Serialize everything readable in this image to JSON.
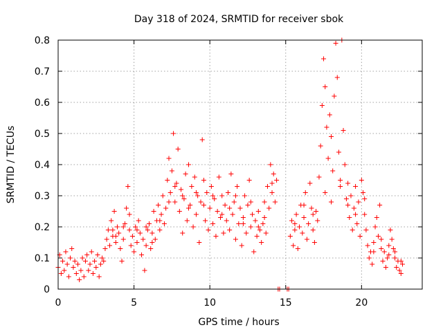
{
  "chart_data": {
    "type": "scatter",
    "title": "Day 318 of 2024, SRMTID for receiver sbok",
    "xlabel": "GPS time / hours",
    "ylabel": "SRMTID / TECUs",
    "xlim": [
      0,
      24
    ],
    "ylim": [
      0,
      0.8
    ],
    "xticks": [
      0,
      5,
      10,
      15,
      20
    ],
    "xtick_labels": [
      "0",
      "5",
      "10",
      "15",
      "20"
    ],
    "yticks": [
      0,
      0.1,
      0.2,
      0.3,
      0.4,
      0.5,
      0.6,
      0.7,
      0.8
    ],
    "ytick_labels": [
      "0",
      "0.1",
      "0.2",
      "0.3",
      "0.4",
      "0.5",
      "0.6",
      "0.7",
      "0.8"
    ],
    "grid": true,
    "marker": "+",
    "color": "#ff0000",
    "series": [
      {
        "name": "SRMTID",
        "points": [
          [
            0.0,
            0.07
          ],
          [
            0.1,
            0.11
          ],
          [
            0.2,
            0.05
          ],
          [
            0.3,
            0.09
          ],
          [
            0.4,
            0.06
          ],
          [
            0.5,
            0.12
          ],
          [
            0.6,
            0.08
          ],
          [
            0.7,
            0.04
          ],
          [
            0.8,
            0.1
          ],
          [
            0.9,
            0.13
          ],
          [
            1.0,
            0.07
          ],
          [
            1.1,
            0.09
          ],
          [
            1.2,
            0.05
          ],
          [
            1.3,
            0.08
          ],
          [
            1.4,
            0.03
          ],
          [
            1.5,
            0.06
          ],
          [
            1.6,
            0.1
          ],
          [
            1.7,
            0.04
          ],
          [
            1.8,
            0.09
          ],
          [
            1.9,
            0.11
          ],
          [
            2.0,
            0.06
          ],
          [
            2.1,
            0.08
          ],
          [
            2.2,
            0.12
          ],
          [
            2.3,
            0.05
          ],
          [
            2.4,
            0.09
          ],
          [
            2.5,
            0.07
          ],
          [
            2.6,
            0.11
          ],
          [
            2.7,
            0.04
          ],
          [
            2.8,
            0.08
          ],
          [
            2.9,
            0.1
          ],
          [
            3.0,
            0.09
          ],
          [
            3.1,
            0.13
          ],
          [
            3.2,
            0.16
          ],
          [
            3.3,
            0.19
          ],
          [
            3.4,
            0.14
          ],
          [
            3.5,
            0.22
          ],
          [
            3.6,
            0.17
          ],
          [
            3.7,
            0.25
          ],
          [
            3.8,
            0.15
          ],
          [
            3.9,
            0.2
          ],
          [
            4.0,
            0.18
          ],
          [
            4.1,
            0.13
          ],
          [
            4.2,
            0.09
          ],
          [
            4.3,
            0.16
          ],
          [
            4.4,
            0.21
          ],
          [
            4.5,
            0.26
          ],
          [
            4.6,
            0.33
          ],
          [
            4.7,
            0.19
          ],
          [
            4.8,
            0.14
          ],
          [
            4.9,
            0.17
          ],
          [
            5.0,
            0.12
          ],
          [
            5.1,
            0.2
          ],
          [
            5.2,
            0.15
          ],
          [
            5.3,
            0.22
          ],
          [
            5.4,
            0.18
          ],
          [
            5.5,
            0.11
          ],
          [
            5.6,
            0.16
          ],
          [
            5.7,
            0.06
          ],
          [
            5.8,
            0.14
          ],
          [
            5.9,
            0.19
          ],
          [
            6.0,
            0.21
          ],
          [
            6.1,
            0.13
          ],
          [
            6.2,
            0.18
          ],
          [
            6.3,
            0.25
          ],
          [
            6.4,
            0.16
          ],
          [
            6.5,
            0.22
          ],
          [
            6.6,
            0.27
          ],
          [
            6.7,
            0.19
          ],
          [
            6.8,
            0.24
          ],
          [
            6.9,
            0.3
          ],
          [
            7.0,
            0.21
          ],
          [
            7.1,
            0.26
          ],
          [
            7.2,
            0.35
          ],
          [
            7.3,
            0.42
          ],
          [
            7.4,
            0.31
          ],
          [
            7.5,
            0.38
          ],
          [
            7.6,
            0.5
          ],
          [
            7.7,
            0.28
          ],
          [
            7.8,
            0.34
          ],
          [
            7.9,
            0.45
          ],
          [
            8.0,
            0.25
          ],
          [
            8.1,
            0.32
          ],
          [
            8.2,
            0.18
          ],
          [
            8.3,
            0.29
          ],
          [
            8.4,
            0.37
          ],
          [
            8.5,
            0.22
          ],
          [
            8.6,
            0.4
          ],
          [
            8.7,
            0.27
          ],
          [
            8.8,
            0.33
          ],
          [
            8.9,
            0.2
          ],
          [
            9.0,
            0.36
          ],
          [
            9.1,
            0.24
          ],
          [
            9.2,
            0.3
          ],
          [
            9.3,
            0.15
          ],
          [
            9.4,
            0.28
          ],
          [
            9.5,
            0.48
          ],
          [
            9.6,
            0.35
          ],
          [
            9.7,
            0.22
          ],
          [
            9.8,
            0.31
          ],
          [
            9.9,
            0.19
          ],
          [
            10.0,
            0.26
          ],
          [
            10.1,
            0.33
          ],
          [
            10.2,
            0.21
          ],
          [
            10.3,
            0.29
          ],
          [
            10.4,
            0.17
          ],
          [
            10.5,
            0.25
          ],
          [
            10.6,
            0.36
          ],
          [
            10.7,
            0.23
          ],
          [
            10.8,
            0.3
          ],
          [
            10.9,
            0.18
          ],
          [
            11.0,
            0.27
          ],
          [
            11.1,
            0.22
          ],
          [
            11.2,
            0.31
          ],
          [
            11.3,
            0.19
          ],
          [
            11.4,
            0.37
          ],
          [
            11.5,
            0.24
          ],
          [
            11.6,
            0.28
          ],
          [
            11.7,
            0.16
          ],
          [
            11.8,
            0.33
          ],
          [
            11.9,
            0.21
          ],
          [
            12.0,
            0.26
          ],
          [
            12.1,
            0.14
          ],
          [
            12.2,
            0.23
          ],
          [
            12.3,
            0.3
          ],
          [
            12.4,
            0.18
          ],
          [
            12.5,
            0.27
          ],
          [
            12.6,
            0.35
          ],
          [
            12.7,
            0.2
          ],
          [
            12.8,
            0.24
          ],
          [
            12.9,
            0.12
          ],
          [
            13.0,
            0.22
          ],
          [
            13.1,
            0.17
          ],
          [
            13.2,
            0.25
          ],
          [
            13.3,
            0.19
          ],
          [
            13.4,
            0.15
          ],
          [
            13.5,
            0.21
          ],
          [
            13.6,
            0.28
          ],
          [
            13.7,
            0.18
          ],
          [
            13.8,
            0.33
          ],
          [
            13.9,
            0.26
          ],
          [
            14.0,
            0.4
          ],
          [
            14.1,
            0.31
          ],
          [
            14.2,
            0.37
          ],
          [
            14.3,
            0.28
          ],
          [
            14.4,
            0.35
          ],
          [
            14.5,
            0.0
          ],
          [
            14.6,
            0.0
          ],
          [
            15.1,
            0.0
          ],
          [
            15.2,
            0.0
          ],
          [
            15.3,
            0.17
          ],
          [
            15.4,
            0.22
          ],
          [
            15.5,
            0.14
          ],
          [
            15.6,
            0.19
          ],
          [
            15.7,
            0.24
          ],
          [
            15.8,
            0.13
          ],
          [
            15.9,
            0.2
          ],
          [
            16.0,
            0.27
          ],
          [
            16.1,
            0.18
          ],
          [
            16.2,
            0.23
          ],
          [
            16.3,
            0.31
          ],
          [
            16.4,
            0.16
          ],
          [
            16.5,
            0.21
          ],
          [
            16.6,
            0.34
          ],
          [
            16.7,
            0.26
          ],
          [
            16.8,
            0.19
          ],
          [
            16.9,
            0.15
          ],
          [
            17.0,
            0.25
          ],
          [
            17.1,
            0.22
          ],
          [
            17.2,
            0.36
          ],
          [
            17.3,
            0.46
          ],
          [
            17.4,
            0.59
          ],
          [
            17.5,
            0.74
          ],
          [
            17.6,
            0.65
          ],
          [
            17.7,
            0.52
          ],
          [
            17.8,
            0.42
          ],
          [
            17.9,
            0.56
          ],
          [
            18.0,
            0.49
          ],
          [
            18.1,
            0.38
          ],
          [
            18.2,
            0.62
          ],
          [
            18.3,
            0.79
          ],
          [
            18.4,
            0.68
          ],
          [
            18.5,
            0.44
          ],
          [
            18.6,
            0.35
          ],
          [
            18.7,
            0.8
          ],
          [
            18.8,
            0.51
          ],
          [
            18.9,
            0.4
          ],
          [
            19.0,
            0.29
          ],
          [
            19.1,
            0.34
          ],
          [
            19.2,
            0.23
          ],
          [
            19.3,
            0.3
          ],
          [
            19.4,
            0.19
          ],
          [
            19.5,
            0.26
          ],
          [
            19.6,
            0.33
          ],
          [
            19.7,
            0.21
          ],
          [
            19.8,
            0.28
          ],
          [
            19.9,
            0.17
          ],
          [
            20.0,
            0.35
          ],
          [
            20.1,
            0.31
          ],
          [
            20.2,
            0.24
          ],
          [
            20.3,
            0.19
          ],
          [
            20.4,
            0.14
          ],
          [
            20.5,
            0.1
          ],
          [
            20.6,
            0.12
          ],
          [
            20.7,
            0.08
          ],
          [
            20.8,
            0.15
          ],
          [
            20.9,
            0.2
          ],
          [
            21.0,
            0.23
          ],
          [
            21.1,
            0.17
          ],
          [
            21.2,
            0.27
          ],
          [
            21.3,
            0.13
          ],
          [
            21.4,
            0.09
          ],
          [
            21.5,
            0.12
          ],
          [
            21.6,
            0.07
          ],
          [
            21.7,
            0.1
          ],
          [
            21.8,
            0.14
          ],
          [
            21.9,
            0.19
          ],
          [
            22.0,
            0.16
          ],
          [
            22.1,
            0.13
          ],
          [
            22.2,
            0.1
          ],
          [
            22.3,
            0.07
          ],
          [
            22.4,
            0.09
          ],
          [
            22.5,
            0.06
          ],
          [
            22.6,
            0.05
          ],
          [
            22.7,
            0.08
          ],
          [
            3.6,
            0.19
          ],
          [
            3.8,
            0.17
          ],
          [
            4.3,
            0.2
          ],
          [
            4.7,
            0.24
          ],
          [
            5.2,
            0.19
          ],
          [
            5.8,
            0.2
          ],
          [
            6.2,
            0.15
          ],
          [
            6.7,
            0.22
          ],
          [
            7.3,
            0.28
          ],
          [
            7.7,
            0.33
          ],
          [
            8.2,
            0.3
          ],
          [
            8.6,
            0.26
          ],
          [
            9.1,
            0.31
          ],
          [
            9.6,
            0.27
          ],
          [
            10.2,
            0.3
          ],
          [
            10.8,
            0.24
          ],
          [
            11.3,
            0.26
          ],
          [
            11.7,
            0.3
          ],
          [
            12.2,
            0.21
          ],
          [
            12.7,
            0.28
          ],
          [
            13.2,
            0.2
          ],
          [
            13.6,
            0.23
          ],
          [
            14.1,
            0.34
          ],
          [
            15.6,
            0.21
          ],
          [
            16.2,
            0.27
          ],
          [
            16.8,
            0.24
          ],
          [
            17.6,
            0.31
          ],
          [
            18.0,
            0.28
          ],
          [
            18.6,
            0.33
          ],
          [
            19.1,
            0.27
          ],
          [
            19.6,
            0.24
          ],
          [
            20.2,
            0.29
          ],
          [
            20.8,
            0.12
          ],
          [
            21.3,
            0.16
          ],
          [
            21.8,
            0.11
          ],
          [
            22.2,
            0.12
          ],
          [
            22.6,
            0.09
          ]
        ]
      }
    ]
  }
}
